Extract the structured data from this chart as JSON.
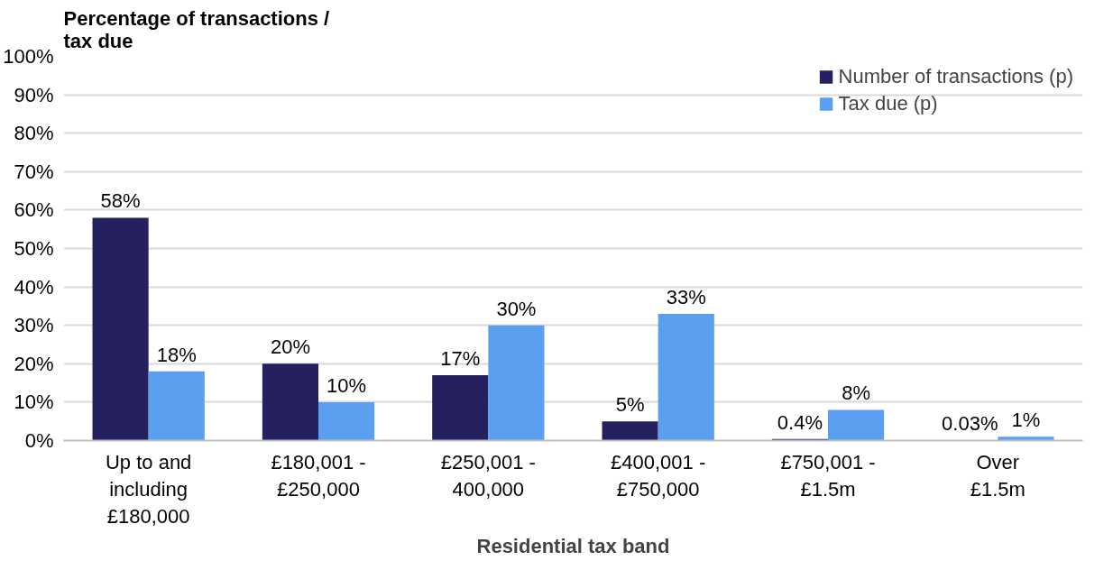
{
  "chart_data": {
    "type": "bar",
    "ylabel": "Percentage of transactions /\ntax due",
    "xlabel": "Residential tax band",
    "categories": [
      "Up to and\nincluding\n£180,000",
      "£180,001 -\n£250,000",
      "£250,001 -\n400,000",
      "£400,001 -\n£750,000",
      "£750,001 -\n£1.5m",
      "Over\n£1.5m"
    ],
    "series": [
      {
        "name": "Number of transactions (p)",
        "color": "#25215e",
        "values": [
          58,
          20,
          17,
          5,
          0.4,
          0.03
        ],
        "value_labels": [
          "58%",
          "20%",
          "17%",
          "5%",
          "0.4%",
          "0.03%"
        ]
      },
      {
        "name": "Tax due (p)",
        "color": "#5b9ff0",
        "values": [
          18,
          10,
          30,
          33,
          8,
          1
        ],
        "value_labels": [
          "18%",
          "10%",
          "30%",
          "33%",
          "8%",
          "1%"
        ]
      }
    ],
    "ylim": [
      0,
      100
    ],
    "yticks": [
      {
        "value": 0,
        "label": "0%"
      },
      {
        "value": 10,
        "label": "10%"
      },
      {
        "value": 20,
        "label": "20%"
      },
      {
        "value": 30,
        "label": "30%"
      },
      {
        "value": 40,
        "label": "40%"
      },
      {
        "value": 50,
        "label": "50%"
      },
      {
        "value": 60,
        "label": "60%"
      },
      {
        "value": 70,
        "label": "70%"
      },
      {
        "value": 80,
        "label": "80%"
      },
      {
        "value": 90,
        "label": "90%"
      },
      {
        "value": 100,
        "label": "100%"
      }
    ],
    "grid": "y",
    "legend": "top right"
  }
}
